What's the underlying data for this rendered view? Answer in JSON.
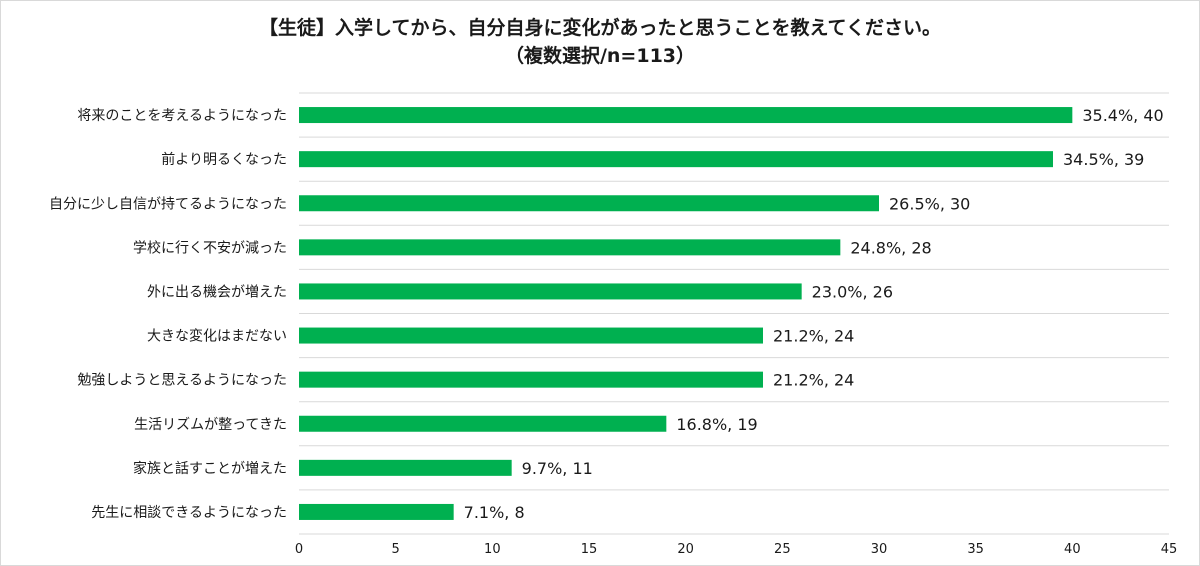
{
  "chart_data": {
    "type": "bar",
    "orientation": "horizontal",
    "title": "【生徒】入学してから、自分自身に変化があったと思うことを教えてください。",
    "subtitle": "（複数選択/n=113）",
    "categories": [
      "将来のことを考えるようになった",
      "前より明るくなった",
      "自分に少し自信が持てるようになった",
      "学校に行く不安が減った",
      "外に出る機会が増えた",
      "大きな変化はまだない",
      "勉強しようと思えるようになった",
      "生活リズムが整ってきた",
      "家族と話すことが増えた",
      "先生に相談できるようになった"
    ],
    "values": [
      40,
      39,
      30,
      28,
      26,
      24,
      24,
      19,
      11,
      8
    ],
    "data_labels": [
      "35.4%, 40",
      "34.5%, 39",
      "26.5%, 30",
      "24.8%, 28",
      "23.0%, 26",
      "21.2%, 24",
      "21.2%, 24",
      "16.8%, 19",
      "9.7%, 11",
      "7.1%, 8"
    ],
    "x_ticks": [
      "0",
      "5",
      "10",
      "15",
      "20",
      "25",
      "30",
      "35",
      "40",
      "45"
    ],
    "xlim": [
      0,
      45
    ],
    "xlabel": "",
    "ylabel": "",
    "grid": "horizontal",
    "bar_color": "#00b050",
    "grid_color": "#d9d9d9"
  }
}
